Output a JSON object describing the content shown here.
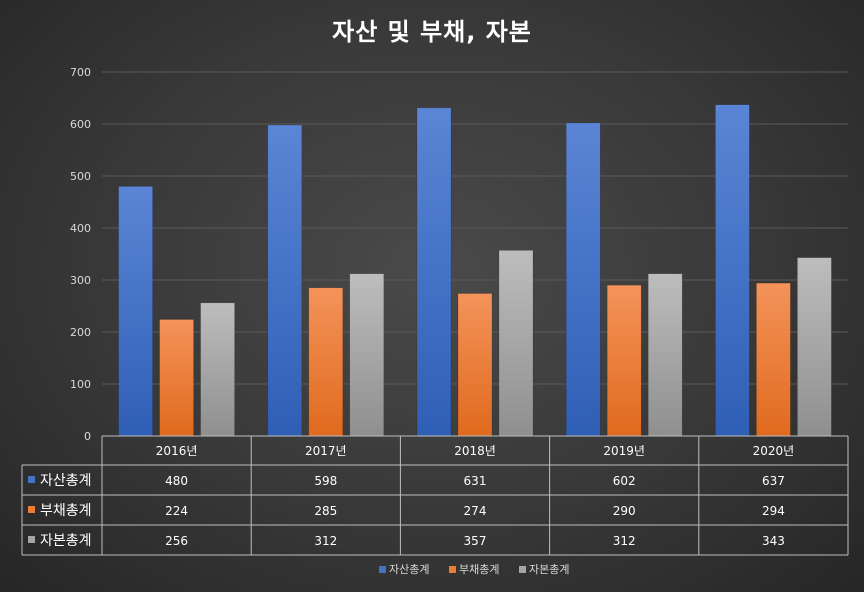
{
  "chart_data": {
    "type": "bar",
    "title": "자산 및 부채, 자본",
    "categories": [
      "2016년",
      "2017년",
      "2018년",
      "2019년",
      "2020년"
    ],
    "series": [
      {
        "name": "자산총계",
        "values": [
          480,
          598,
          631,
          602,
          637
        ],
        "color": "#4472C4"
      },
      {
        "name": "부채총계",
        "values": [
          224,
          285,
          274,
          290,
          294
        ],
        "color": "#ED7D31"
      },
      {
        "name": "자본총계",
        "values": [
          256,
          312,
          357,
          312,
          343
        ],
        "color": "#A5A5A5"
      }
    ],
    "ylim": [
      0,
      700
    ],
    "yticks": [
      0,
      100,
      200,
      300,
      400,
      500,
      600,
      700
    ],
    "grid": true,
    "legend": "bottom",
    "data_table": true
  }
}
